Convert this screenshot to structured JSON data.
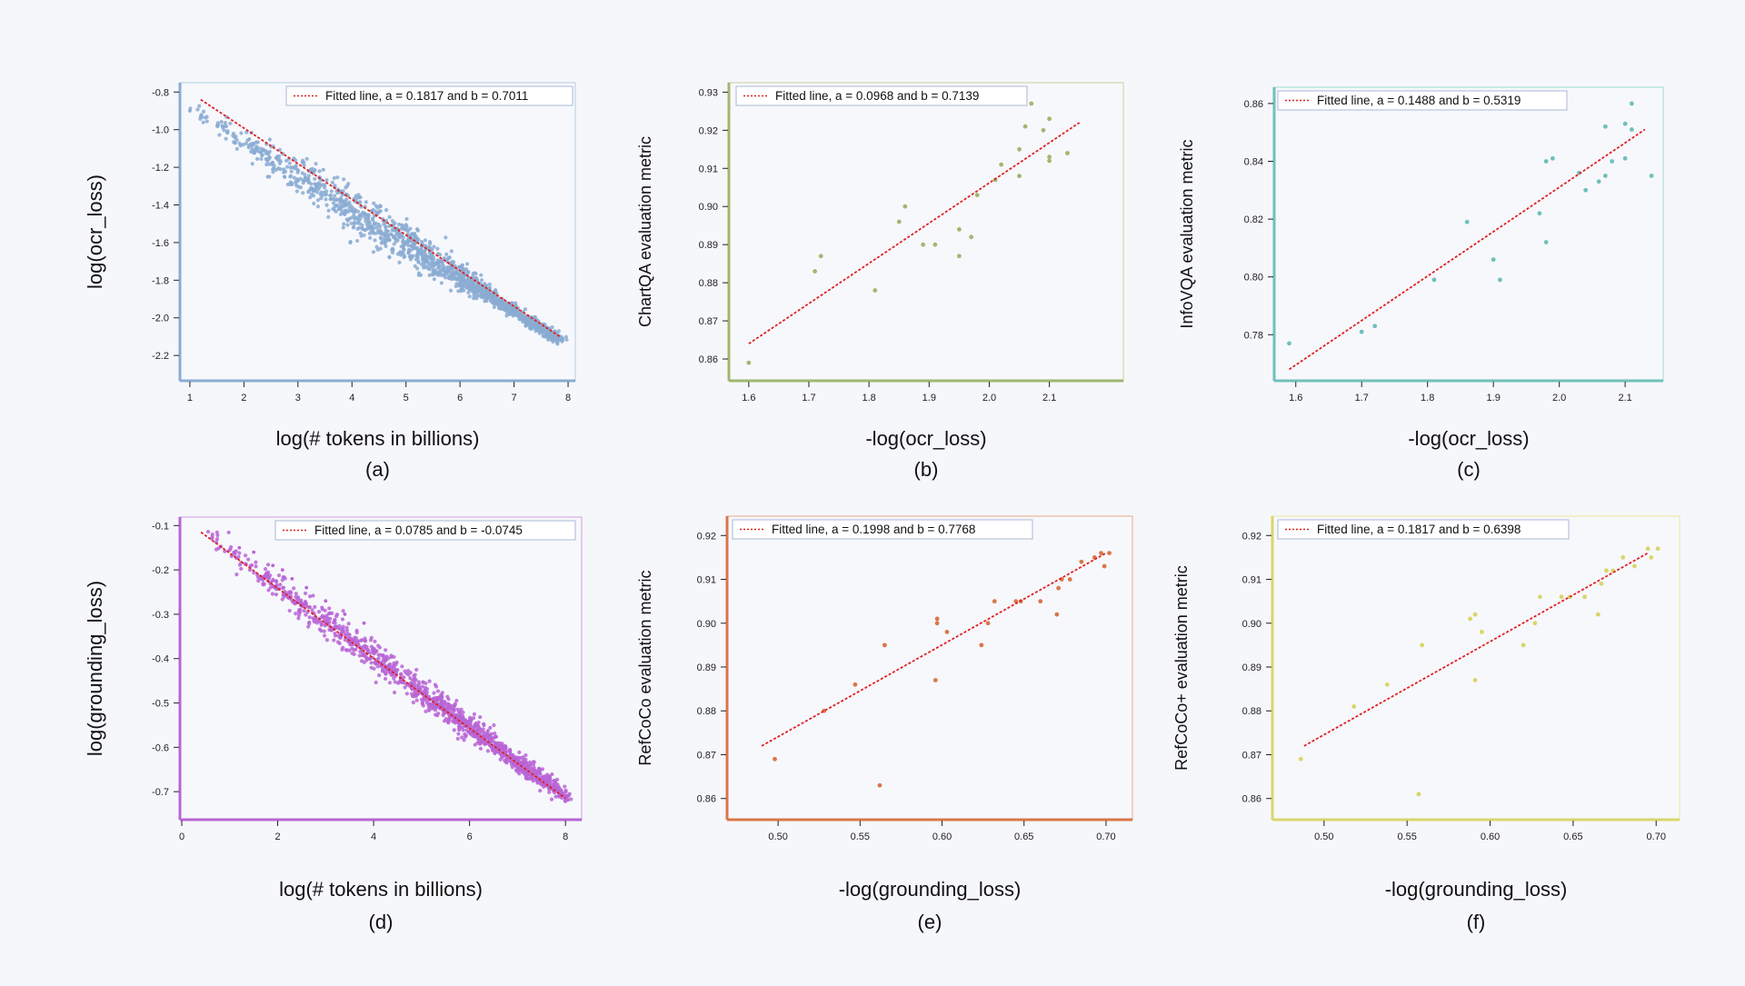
{
  "charts": [
    {
      "id": "a",
      "type": "scatter",
      "panel_label": "(a)",
      "xlabel": "log(# tokens in billions)",
      "ylabel": "log(ocr_loss)",
      "legend": "Fitted line,  a = 0.1817 and b = 0.7011",
      "color": "#89acd2",
      "xlim": [
        0.85,
        8.1
      ],
      "ylim": [
        -2.32,
        -0.76
      ],
      "xticks": [
        1,
        2,
        3,
        4,
        5,
        6,
        7,
        8
      ],
      "yticks": [
        -0.8,
        -1.0,
        -1.2,
        -1.4,
        -1.6,
        -1.8,
        -2.0,
        -2.2
      ],
      "ytick_labels": [
        "-0.8",
        "-1.0",
        "-1.2",
        "-1.4",
        "-1.6",
        "-1.8",
        "-2.0",
        "-2.2"
      ],
      "xtick_labels": [
        "1",
        "2",
        "3",
        "4",
        "5",
        "6",
        "7",
        "8"
      ],
      "fit": [
        [
          1.2,
          -0.84
        ],
        [
          7.85,
          -2.1
        ]
      ],
      "dense": {
        "from": [
          1.0,
          -0.88
        ],
        "to": [
          7.85,
          -2.12
        ],
        "spread": [
          0.02,
          0.14
        ],
        "count": 1400,
        "seed": 11
      },
      "points": [
        [
          1.0,
          -0.9
        ],
        [
          1.2,
          -0.93
        ],
        [
          1.6,
          -0.98
        ],
        [
          2.1,
          -1.05
        ],
        [
          2.3,
          -1.12
        ],
        [
          2.6,
          -1.15
        ],
        [
          2.9,
          -1.2
        ],
        [
          3.1,
          -1.27
        ],
        [
          3.3,
          -1.32
        ],
        [
          3.6,
          -1.37
        ],
        [
          3.2,
          -1.22
        ],
        [
          2.75,
          -1.25
        ]
      ]
    },
    {
      "id": "b",
      "type": "scatter",
      "panel_label": "(b)",
      "xlabel": "-log(ocr_loss)",
      "ylabel": "ChartQA evaluation metric",
      "legend": "Fitted line,  a = 0.0968 and b = 0.7139",
      "color": "#9fb86f",
      "xlim": [
        1.57,
        2.22
      ],
      "ylim": [
        0.855,
        0.932
      ],
      "xticks": [
        1.6,
        1.7,
        1.8,
        1.9,
        2.0,
        2.1
      ],
      "yticks": [
        0.86,
        0.87,
        0.88,
        0.89,
        0.9,
        0.91,
        0.92,
        0.93
      ],
      "xtick_labels": [
        "1.6",
        "1.7",
        "1.8",
        "1.9",
        "2.0",
        "2.1"
      ],
      "ytick_labels": [
        "0.86",
        "0.87",
        "0.88",
        "0.89",
        "0.90",
        "0.91",
        "0.92",
        "0.93"
      ],
      "fit": [
        [
          1.6,
          0.864
        ],
        [
          2.15,
          0.922
        ]
      ],
      "points": [
        [
          1.6,
          0.859
        ],
        [
          1.71,
          0.883
        ],
        [
          1.72,
          0.887
        ],
        [
          1.81,
          0.878
        ],
        [
          1.85,
          0.896
        ],
        [
          1.86,
          0.9
        ],
        [
          1.89,
          0.89
        ],
        [
          1.91,
          0.89
        ],
        [
          1.95,
          0.894
        ],
        [
          1.95,
          0.887
        ],
        [
          1.97,
          0.892
        ],
        [
          1.98,
          0.903
        ],
        [
          2.01,
          0.907
        ],
        [
          2.02,
          0.911
        ],
        [
          2.05,
          0.908
        ],
        [
          2.05,
          0.915
        ],
        [
          2.06,
          0.921
        ],
        [
          2.07,
          0.927
        ],
        [
          2.09,
          0.92
        ],
        [
          2.1,
          0.923
        ],
        [
          2.1,
          0.912
        ],
        [
          2.1,
          0.913
        ],
        [
          2.13,
          0.914
        ]
      ]
    },
    {
      "id": "c",
      "type": "scatter",
      "panel_label": "(c)",
      "xlabel": "-log(ocr_loss)",
      "ylabel": "InfoVQA evaluation metric",
      "legend": "Fitted line,  a = 0.1488 and b = 0.5319",
      "color": "#6fc0bb",
      "xlim": [
        1.57,
        2.155
      ],
      "ylim": [
        0.765,
        0.865
      ],
      "xticks": [
        1.6,
        1.7,
        1.8,
        1.9,
        2.0,
        2.1
      ],
      "yticks": [
        0.78,
        0.8,
        0.82,
        0.84,
        0.86
      ],
      "xtick_labels": [
        "1.6",
        "1.7",
        "1.8",
        "1.9",
        "2.0",
        "2.1"
      ],
      "ytick_labels": [
        "0.78",
        "0.80",
        "0.82",
        "0.84",
        "0.86"
      ],
      "fit": [
        [
          1.59,
          0.768
        ],
        [
          2.13,
          0.851
        ]
      ],
      "points": [
        [
          1.59,
          0.777
        ],
        [
          1.7,
          0.781
        ],
        [
          1.72,
          0.783
        ],
        [
          1.81,
          0.799
        ],
        [
          1.86,
          0.819
        ],
        [
          1.9,
          0.806
        ],
        [
          1.91,
          0.799
        ],
        [
          1.97,
          0.822
        ],
        [
          1.98,
          0.812
        ],
        [
          1.98,
          0.84
        ],
        [
          1.99,
          0.841
        ],
        [
          2.03,
          0.836
        ],
        [
          2.04,
          0.83
        ],
        [
          2.06,
          0.833
        ],
        [
          2.07,
          0.852
        ],
        [
          2.07,
          0.835
        ],
        [
          2.08,
          0.84
        ],
        [
          2.1,
          0.853
        ],
        [
          2.1,
          0.841
        ],
        [
          2.11,
          0.86
        ],
        [
          2.11,
          0.851
        ],
        [
          2.14,
          0.835
        ]
      ]
    },
    {
      "id": "d",
      "type": "scatter",
      "panel_label": "(d)",
      "xlabel": "log(# tokens in billions)",
      "ylabel": "log(grounding_loss)",
      "legend": "Fitted line,  a = 0.0785 and b = -0.0745",
      "color": "#b865d6",
      "xlim": [
        0,
        8.3
      ],
      "ylim": [
        -0.755,
        -0.085
      ],
      "xticks": [
        0,
        2,
        4,
        6,
        8
      ],
      "yticks": [
        -0.1,
        -0.2,
        -0.3,
        -0.4,
        -0.5,
        -0.6,
        -0.7
      ],
      "xtick_labels": [
        "0",
        "2",
        "4",
        "6",
        "8"
      ],
      "ytick_labels": [
        "-0.1",
        "-0.2",
        "-0.3",
        "-0.4",
        "-0.5",
        "-0.6",
        "-0.7"
      ],
      "fit": [
        [
          0.4,
          -0.115
        ],
        [
          8.0,
          -0.715
        ]
      ],
      "dense": {
        "from": [
          0.4,
          -0.112
        ],
        "to": [
          8.0,
          -0.712
        ],
        "spread": [
          0.02,
          0.035
        ],
        "count": 1200,
        "seed": 23
      },
      "points": [
        [
          1.5,
          -0.16
        ],
        [
          1.9,
          -0.19
        ],
        [
          2.3,
          -0.22
        ],
        [
          2.6,
          -0.24
        ],
        [
          3.0,
          -0.27
        ],
        [
          3.4,
          -0.3
        ],
        [
          3.8,
          -0.32
        ],
        [
          1.2,
          -0.15
        ],
        [
          2.1,
          -0.2
        ]
      ]
    },
    {
      "id": "e",
      "type": "scatter",
      "panel_label": "(e)",
      "xlabel": "-log(grounding_loss)",
      "ylabel": "RefCoCo evaluation metric",
      "legend": "Fitted line,  a = 0.1998 and b = 0.7768",
      "color": "#d9774a",
      "xlim": [
        0.47,
        0.715
      ],
      "ylim": [
        0.856,
        0.924
      ],
      "xticks": [
        0.5,
        0.55,
        0.6,
        0.65,
        0.7
      ],
      "yticks": [
        0.86,
        0.87,
        0.88,
        0.89,
        0.9,
        0.91,
        0.92
      ],
      "xtick_labels": [
        "0.50",
        "0.55",
        "0.60",
        "0.65",
        "0.70"
      ],
      "ytick_labels": [
        "0.86",
        "0.87",
        "0.88",
        "0.89",
        "0.90",
        "0.91",
        "0.92"
      ],
      "fit": [
        [
          0.49,
          0.872
        ],
        [
          0.7,
          0.916
        ]
      ],
      "points": [
        [
          0.498,
          0.869
        ],
        [
          0.528,
          0.88
        ],
        [
          0.547,
          0.886
        ],
        [
          0.562,
          0.863
        ],
        [
          0.565,
          0.895
        ],
        [
          0.596,
          0.887
        ],
        [
          0.597,
          0.9
        ],
        [
          0.597,
          0.901
        ],
        [
          0.603,
          0.898
        ],
        [
          0.624,
          0.895
        ],
        [
          0.628,
          0.9
        ],
        [
          0.632,
          0.905
        ],
        [
          0.645,
          0.905
        ],
        [
          0.648,
          0.905
        ],
        [
          0.66,
          0.905
        ],
        [
          0.67,
          0.902
        ],
        [
          0.671,
          0.908
        ],
        [
          0.673,
          0.91
        ],
        [
          0.678,
          0.91
        ],
        [
          0.685,
          0.914
        ],
        [
          0.693,
          0.915
        ],
        [
          0.697,
          0.916
        ],
        [
          0.699,
          0.913
        ],
        [
          0.702,
          0.916
        ]
      ]
    },
    {
      "id": "f",
      "type": "scatter",
      "panel_label": "(f)",
      "xlabel": "-log(grounding_loss)",
      "ylabel": "RefCoCo+ evaluation metric",
      "legend": "Fitted line,  a = 0.1817 and b = 0.6398",
      "color": "#d9d66a",
      "xlim": [
        0.47,
        0.713
      ],
      "ylim": [
        0.856,
        0.924
      ],
      "xticks": [
        0.5,
        0.55,
        0.6,
        0.65,
        0.7
      ],
      "yticks": [
        0.86,
        0.87,
        0.88,
        0.89,
        0.9,
        0.91,
        0.92
      ],
      "xtick_labels": [
        "0.50",
        "0.55",
        "0.60",
        "0.65",
        "0.70"
      ],
      "ytick_labels": [
        "0.86",
        "0.87",
        "0.88",
        "0.89",
        "0.90",
        "0.91",
        "0.92"
      ],
      "fit": [
        [
          0.488,
          0.872
        ],
        [
          0.695,
          0.916
        ]
      ],
      "points": [
        [
          0.486,
          0.869
        ],
        [
          0.518,
          0.881
        ],
        [
          0.538,
          0.886
        ],
        [
          0.557,
          0.861
        ],
        [
          0.559,
          0.895
        ],
        [
          0.588,
          0.901
        ],
        [
          0.591,
          0.902
        ],
        [
          0.591,
          0.887
        ],
        [
          0.595,
          0.898
        ],
        [
          0.62,
          0.895
        ],
        [
          0.627,
          0.9
        ],
        [
          0.63,
          0.906
        ],
        [
          0.643,
          0.906
        ],
        [
          0.648,
          0.906
        ],
        [
          0.657,
          0.906
        ],
        [
          0.665,
          0.902
        ],
        [
          0.667,
          0.909
        ],
        [
          0.67,
          0.912
        ],
        [
          0.674,
          0.912
        ],
        [
          0.68,
          0.915
        ],
        [
          0.687,
          0.913
        ],
        [
          0.695,
          0.917
        ],
        [
          0.697,
          0.915
        ],
        [
          0.701,
          0.917
        ]
      ]
    }
  ]
}
